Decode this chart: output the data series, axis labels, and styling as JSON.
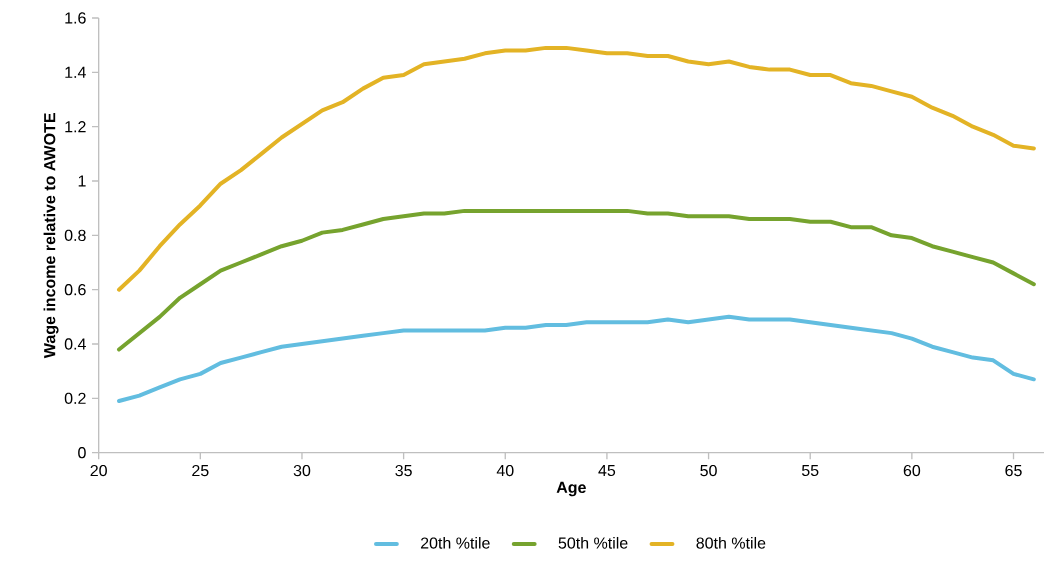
{
  "chart_data": {
    "type": "line",
    "xlabel": "Age",
    "ylabel": "Wage income relative to AWOTE",
    "x": [
      21,
      22,
      23,
      24,
      25,
      26,
      27,
      28,
      29,
      30,
      31,
      32,
      33,
      34,
      35,
      36,
      37,
      38,
      39,
      40,
      41,
      42,
      43,
      44,
      45,
      46,
      47,
      48,
      49,
      50,
      51,
      52,
      53,
      54,
      55,
      56,
      57,
      58,
      59,
      60,
      61,
      62,
      63,
      64,
      65,
      66
    ],
    "series": [
      {
        "name": "20th %tile",
        "color": "#62bde0",
        "values": [
          0.19,
          0.21,
          0.24,
          0.27,
          0.29,
          0.33,
          0.35,
          0.37,
          0.39,
          0.4,
          0.41,
          0.42,
          0.43,
          0.44,
          0.45,
          0.45,
          0.45,
          0.45,
          0.45,
          0.46,
          0.46,
          0.47,
          0.47,
          0.48,
          0.48,
          0.48,
          0.48,
          0.49,
          0.48,
          0.49,
          0.5,
          0.49,
          0.49,
          0.49,
          0.48,
          0.47,
          0.46,
          0.45,
          0.44,
          0.42,
          0.39,
          0.37,
          0.35,
          0.34,
          0.29,
          0.27
        ]
      },
      {
        "name": "50th %tile",
        "color": "#76a32e",
        "values": [
          0.38,
          0.44,
          0.5,
          0.57,
          0.62,
          0.67,
          0.7,
          0.73,
          0.76,
          0.78,
          0.81,
          0.82,
          0.84,
          0.86,
          0.87,
          0.88,
          0.88,
          0.89,
          0.89,
          0.89,
          0.89,
          0.89,
          0.89,
          0.89,
          0.89,
          0.89,
          0.88,
          0.88,
          0.87,
          0.87,
          0.87,
          0.86,
          0.86,
          0.86,
          0.85,
          0.85,
          0.83,
          0.83,
          0.8,
          0.79,
          0.76,
          0.74,
          0.72,
          0.7,
          0.66,
          0.62
        ]
      },
      {
        "name": "80th %tile",
        "color": "#e3b325",
        "values": [
          0.6,
          0.67,
          0.76,
          0.84,
          0.91,
          0.99,
          1.04,
          1.1,
          1.16,
          1.21,
          1.26,
          1.29,
          1.34,
          1.38,
          1.39,
          1.43,
          1.44,
          1.45,
          1.47,
          1.48,
          1.48,
          1.49,
          1.49,
          1.48,
          1.47,
          1.47,
          1.46,
          1.46,
          1.44,
          1.43,
          1.44,
          1.42,
          1.41,
          1.41,
          1.39,
          1.39,
          1.36,
          1.35,
          1.33,
          1.31,
          1.27,
          1.24,
          1.2,
          1.17,
          1.13,
          1.12
        ]
      }
    ],
    "xlim": [
      20,
      66.5
    ],
    "xticks": [
      20,
      25,
      30,
      35,
      40,
      45,
      50,
      55,
      60,
      65
    ],
    "ylim": [
      0,
      1.6
    ],
    "yticks": [
      0,
      0.2,
      0.4,
      0.6,
      0.8,
      1,
      1.2,
      1.4,
      1.6
    ],
    "grid": false,
    "legend": "bottom",
    "marker": "none",
    "line_style": "solid"
  }
}
